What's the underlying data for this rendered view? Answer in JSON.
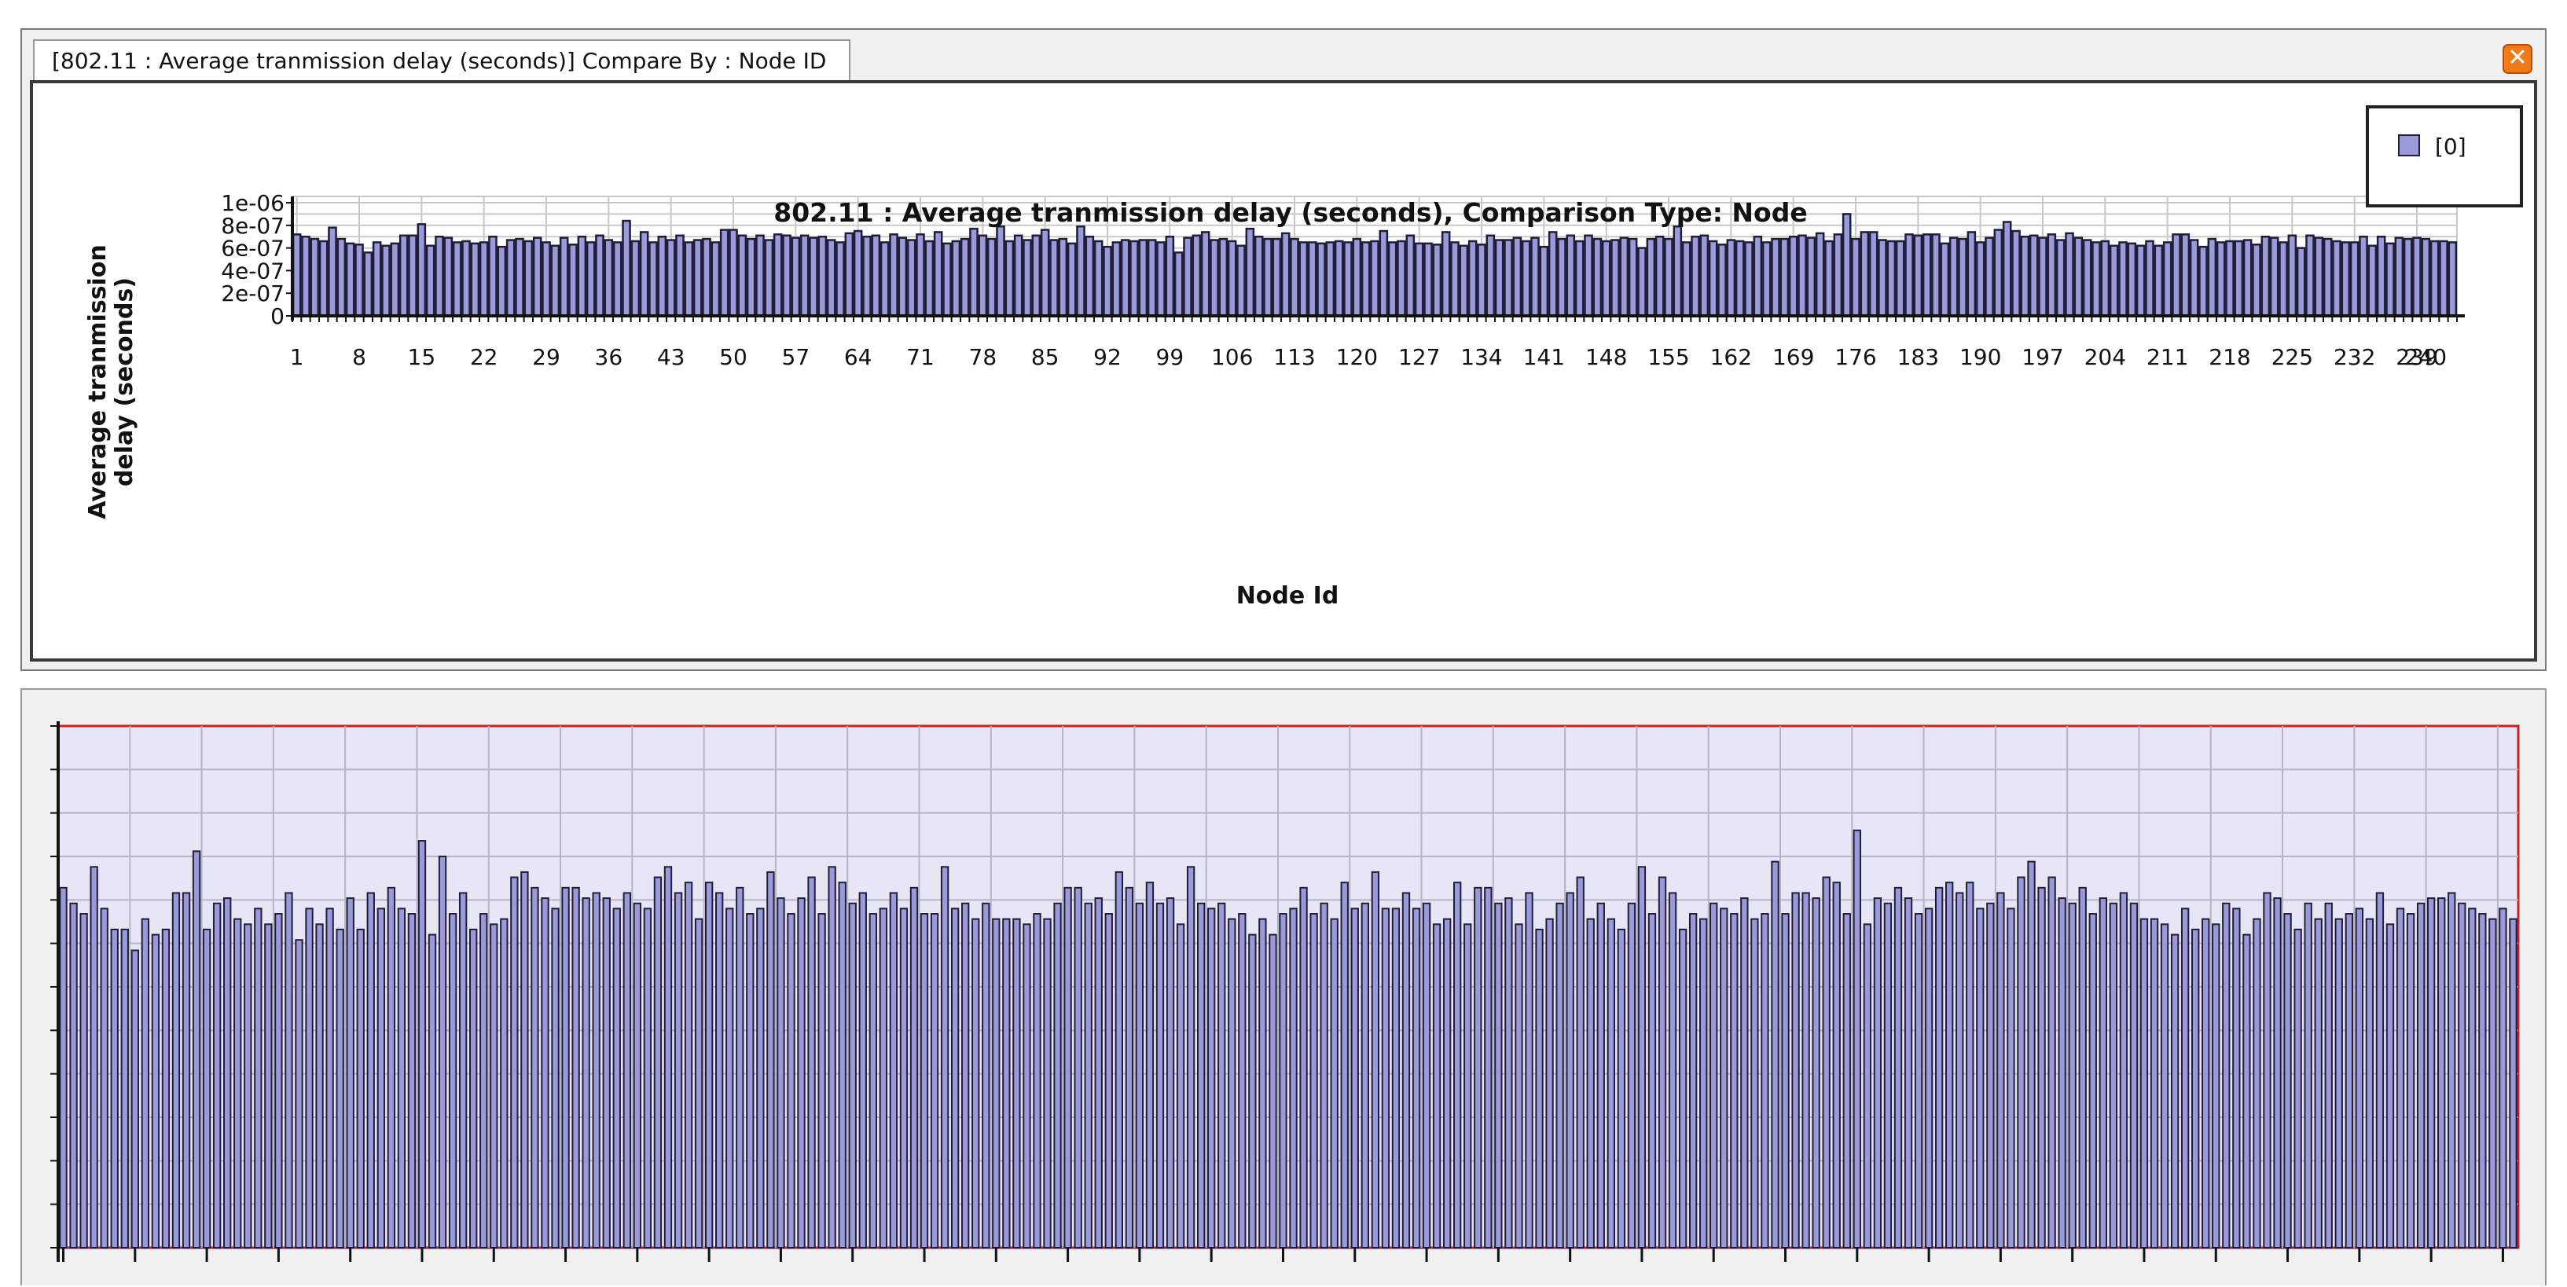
{
  "window": {
    "tab_label": "[802.11 :  Average tranmission delay (seconds)] Compare By : Node ID",
    "close_icon": "close-icon"
  },
  "colors": {
    "bar_fill": "#9a9ad8",
    "bar_stroke": "#1e1e3c",
    "plot_background_bottom": "#e6e6f4",
    "plot_border_bottom": "#cc2020",
    "grid": "#c8c8c8"
  },
  "chart_data": [
    {
      "type": "bar",
      "title": "802.11 :  Average tranmission delay (seconds), Comparison Type: Node",
      "xlabel": "Node Id",
      "ylabel": "Average tranmission delay (seconds)",
      "ylim": [
        0,
        1e-06
      ],
      "yticks": [
        "0",
        "2e-07",
        "4e-07",
        "6e-07",
        "8e-07",
        "1e-06"
      ],
      "xticks": [
        "1",
        "8",
        "15",
        "22",
        "29",
        "36",
        "43",
        "50",
        "57",
        "64",
        "71",
        "78",
        "85",
        "92",
        "99",
        "106",
        "113",
        "120",
        "127",
        "134",
        "141",
        "148",
        "155",
        "162",
        "169",
        "176",
        "183",
        "190",
        "197",
        "204",
        "211",
        "218",
        "225",
        "232",
        "239",
        "240"
      ],
      "grid": true,
      "legend": {
        "position": "top-right",
        "entries": [
          "[0]"
        ]
      },
      "series": [
        {
          "name": "[0]",
          "x_start": 1,
          "values_e7": [
            7.2,
            7.0,
            6.8,
            6.6,
            7.8,
            6.8,
            6.4,
            6.3,
            5.6,
            6.5,
            6.2,
            6.4,
            7.1,
            7.1,
            8.1,
            6.2,
            7.0,
            6.9,
            6.5,
            6.6,
            6.4,
            6.5,
            7.0,
            6.1,
            6.7,
            6.8,
            6.6,
            6.9,
            6.5,
            6.2,
            6.9,
            6.3,
            7.0,
            6.5,
            7.1,
            6.7,
            6.5,
            8.4,
            6.6,
            7.4,
            6.5,
            7.0,
            6.7,
            7.1,
            6.5,
            6.7,
            6.8,
            6.5,
            7.6,
            7.6,
            7.1,
            6.8,
            7.1,
            6.7,
            7.2,
            7.1,
            6.9,
            7.1,
            6.9,
            7.0,
            6.7,
            6.5,
            7.3,
            7.5,
            7.0,
            7.1,
            6.5,
            7.2,
            6.9,
            6.7,
            7.2,
            6.6,
            7.4,
            6.4,
            6.6,
            6.8,
            7.7,
            7.1,
            6.8,
            7.9,
            6.6,
            7.1,
            6.7,
            7.1,
            7.6,
            6.7,
            6.8,
            6.4,
            7.9,
            7.0,
            6.6,
            6.1,
            6.5,
            6.7,
            6.6,
            6.7,
            6.7,
            6.5,
            7.0,
            5.6,
            6.9,
            7.1,
            7.4,
            6.7,
            6.8,
            6.6,
            6.2,
            7.7,
            7.0,
            6.8,
            6.8,
            7.3,
            6.8,
            6.5,
            6.5,
            6.4,
            6.5,
            6.6,
            6.5,
            6.8,
            6.5,
            6.6,
            7.5,
            6.5,
            6.6,
            7.1,
            6.4,
            6.4,
            6.3,
            7.4,
            6.5,
            6.2,
            6.6,
            6.3,
            7.1,
            6.7,
            6.7,
            6.9,
            6.6,
            6.9,
            6.1,
            7.4,
            6.8,
            7.1,
            6.6,
            7.1,
            6.8,
            6.6,
            6.7,
            6.9,
            6.8,
            6.0,
            6.8,
            7.0,
            6.8,
            7.9,
            6.5,
            7.0,
            7.1,
            6.6,
            6.3,
            6.7,
            6.6,
            6.5,
            7.0,
            6.5,
            6.8,
            6.8,
            7.0,
            7.1,
            6.9,
            7.3,
            6.6,
            7.2,
            9.0,
            6.8,
            7.4,
            7.4,
            6.7,
            6.6,
            6.6,
            7.2,
            7.1,
            7.2,
            7.2,
            6.4,
            6.9,
            6.8,
            7.4,
            6.5,
            6.9,
            7.6,
            8.3,
            7.5,
            7.0,
            7.1,
            6.9,
            7.2,
            6.7,
            7.3,
            6.9,
            6.7,
            6.5,
            6.6,
            6.2,
            6.5,
            6.4,
            6.2,
            6.6,
            6.2,
            6.5,
            7.2,
            7.2,
            6.7,
            6.1,
            6.8,
            6.5,
            6.6,
            6.6,
            6.7,
            6.3,
            7.0,
            6.9,
            6.5,
            7.1,
            6.0,
            7.1,
            6.9,
            6.8,
            6.6,
            6.5,
            6.5,
            7.0,
            6.2,
            7.0,
            6.4,
            6.9,
            6.8,
            6.9,
            6.8,
            6.6,
            6.6,
            6.5
          ]
        }
      ]
    },
    {
      "type": "bar",
      "grid": true,
      "series": [
        {
          "x_start": 1,
          "values": [
            0.69,
            0.66,
            0.64,
            0.73,
            0.65,
            0.61,
            0.61,
            0.57,
            0.63,
            0.6,
            0.61,
            0.68,
            0.68,
            0.76,
            0.61,
            0.66,
            0.67,
            0.63,
            0.62,
            0.65,
            0.62,
            0.64,
            0.68,
            0.59,
            0.65,
            0.62,
            0.65,
            0.61,
            0.67,
            0.61,
            0.68,
            0.65,
            0.69,
            0.65,
            0.64,
            0.78,
            0.6,
            0.75,
            0.64,
            0.68,
            0.61,
            0.64,
            0.62,
            0.63,
            0.71,
            0.72,
            0.69,
            0.67,
            0.65,
            0.69,
            0.69,
            0.67,
            0.68,
            0.67,
            0.65,
            0.68,
            0.66,
            0.65,
            0.71,
            0.73,
            0.68,
            0.7,
            0.63,
            0.7,
            0.68,
            0.65,
            0.69,
            0.64,
            0.65,
            0.72,
            0.67,
            0.64,
            0.67,
            0.71,
            0.64,
            0.73,
            0.7,
            0.66,
            0.68,
            0.64,
            0.65,
            0.68,
            0.65,
            0.69,
            0.64,
            0.64,
            0.73,
            0.65,
            0.66,
            0.63,
            0.66,
            0.63,
            0.63,
            0.63,
            0.62,
            0.64,
            0.63,
            0.66,
            0.69,
            0.69,
            0.66,
            0.67,
            0.64,
            0.72,
            0.69,
            0.66,
            0.7,
            0.66,
            0.67,
            0.62,
            0.73,
            0.66,
            0.65,
            0.66,
            0.63,
            0.64,
            0.6,
            0.63,
            0.6,
            0.64,
            0.65,
            0.69,
            0.64,
            0.66,
            0.63,
            0.7,
            0.65,
            0.66,
            0.72,
            0.65,
            0.65,
            0.68,
            0.65,
            0.66,
            0.62,
            0.63,
            0.7,
            0.62,
            0.69,
            0.69,
            0.66,
            0.67,
            0.62,
            0.68,
            0.61,
            0.63,
            0.66,
            0.68,
            0.71,
            0.63,
            0.66,
            0.63,
            0.61,
            0.66,
            0.73,
            0.64,
            0.71,
            0.68,
            0.61,
            0.64,
            0.63,
            0.66,
            0.65,
            0.64,
            0.67,
            0.63,
            0.64,
            0.74,
            0.64,
            0.68,
            0.68,
            0.67,
            0.71,
            0.7,
            0.64,
            0.8,
            0.62,
            0.67,
            0.66,
            0.69,
            0.67,
            0.64,
            0.65,
            0.69,
            0.7,
            0.68,
            0.7,
            0.65,
            0.66,
            0.68,
            0.65,
            0.71,
            0.74,
            0.69,
            0.71,
            0.67,
            0.66,
            0.69,
            0.64,
            0.67,
            0.66,
            0.68,
            0.66,
            0.63,
            0.63,
            0.62,
            0.6,
            0.65,
            0.61,
            0.63,
            0.62,
            0.66,
            0.65,
            0.6,
            0.63,
            0.68,
            0.67,
            0.64,
            0.61,
            0.66,
            0.63,
            0.66,
            0.63,
            0.64,
            0.65,
            0.63,
            0.68,
            0.62,
            0.65,
            0.64,
            0.66,
            0.67,
            0.67,
            0.68,
            0.66,
            0.65,
            0.64,
            0.63,
            0.65,
            0.63
          ]
        }
      ]
    }
  ]
}
